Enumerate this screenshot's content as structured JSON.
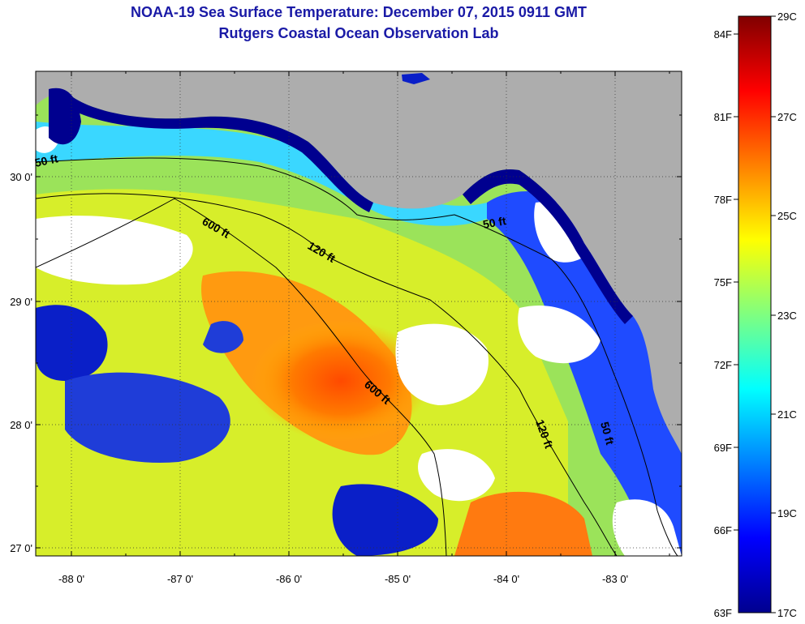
{
  "title": "NOAA-19 Sea Surface Temperature:  December 07, 2015 0911 GMT",
  "subtitle": "Rutgers Coastal Ocean Observation Lab",
  "map": {
    "lon_ticks": [
      "-88 0'",
      "-87 0'",
      "-86 0'",
      "-85 0'",
      "-84 0'",
      "-83 0'"
    ],
    "lat_ticks": [
      "30 0'",
      "29 0'",
      "28 0'",
      "27 0'"
    ],
    "contours": [
      "50 ft",
      "600 ft",
      "120 ft",
      "50 ft",
      "600 ft",
      "120 ft",
      "50 ft"
    ]
  },
  "colorbar": {
    "f_labels": [
      "84F",
      "81F",
      "78F",
      "75F",
      "72F",
      "69F",
      "66F",
      "63F"
    ],
    "c_labels": [
      "29C",
      "27C",
      "25C",
      "23C",
      "21C",
      "19C",
      "17C"
    ]
  },
  "colors": {
    "title": "#1a1aa6",
    "land": "#adadad",
    "cloud": "#ffffff",
    "cold": "#00008f",
    "warm": "#ff6a00"
  }
}
